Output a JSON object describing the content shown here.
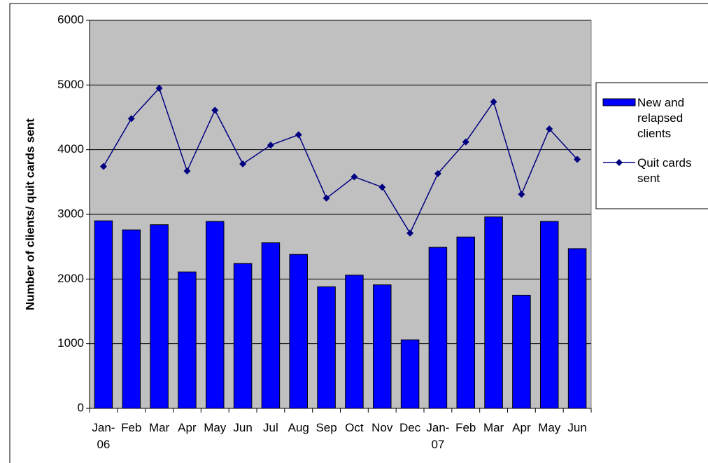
{
  "chart_data": {
    "type": "bar",
    "y_label": "Number of clients/ quit cards sent",
    "categories": [
      "Jan-06",
      "Feb",
      "Mar",
      "Apr",
      "May",
      "Jun",
      "Jul",
      "Aug",
      "Sep",
      "Oct",
      "Nov",
      "Dec",
      "Jan-07",
      "Feb",
      "Mar",
      "Apr",
      "May",
      "Jun"
    ],
    "series": [
      {
        "name": "New and relapsed clients",
        "type": "bar",
        "color": "#0000ff",
        "values": [
          2900,
          2760,
          2840,
          2110,
          2890,
          2240,
          2560,
          2380,
          1880,
          2060,
          1910,
          1060,
          2490,
          2650,
          2960,
          1750,
          2890,
          2470
        ]
      },
      {
        "name": "Quit cards sent",
        "type": "line",
        "color": "#000080",
        "values": [
          3740,
          4480,
          4950,
          3670,
          4610,
          3780,
          4070,
          4230,
          3250,
          3580,
          3420,
          2710,
          3630,
          4120,
          4740,
          3310,
          4320,
          3850
        ]
      }
    ],
    "ylim": [
      0,
      6000
    ],
    "yticks": [
      0,
      1000,
      2000,
      3000,
      4000,
      5000,
      6000
    ],
    "grid": true,
    "legend": "right",
    "background": "#c0c0c0"
  }
}
